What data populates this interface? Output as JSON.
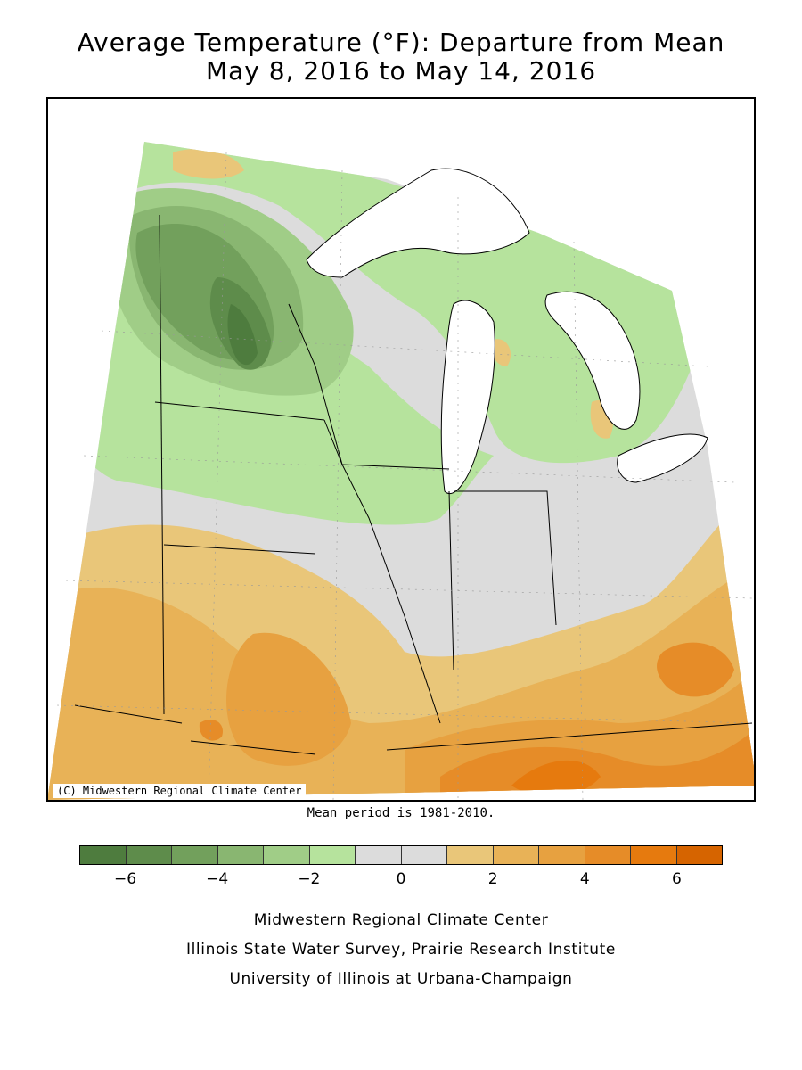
{
  "title": {
    "line1": "Average Temperature (°F): Departure from Mean",
    "line2": "May 8, 2016 to May 14, 2016"
  },
  "map": {
    "credit": "(C) Midwestern Regional Climate Center",
    "mean_note": "Mean period is 1981-2010."
  },
  "legend": {
    "colors": [
      "#4e7c3e",
      "#5e8c4b",
      "#72a05c",
      "#89b671",
      "#a0cd87",
      "#b6e39d",
      "#dcdcdc",
      "#dcdcdc",
      "#e9c679",
      "#e8b257",
      "#e7a140",
      "#e68c28",
      "#e67a0e",
      "#d66400"
    ],
    "tick_labels": [
      "−6",
      "−4",
      "−2",
      "0",
      "2",
      "4",
      "6"
    ],
    "tick_values": [
      -6,
      -4,
      -2,
      0,
      2,
      4,
      6
    ],
    "min": -7,
    "max": 7
  },
  "footer": {
    "line1": "Midwestern Regional Climate Center",
    "line2": "Illinois State Water Survey, Prairie Research Institute",
    "line3": "University of Illinois at Urbana-Champaign"
  }
}
